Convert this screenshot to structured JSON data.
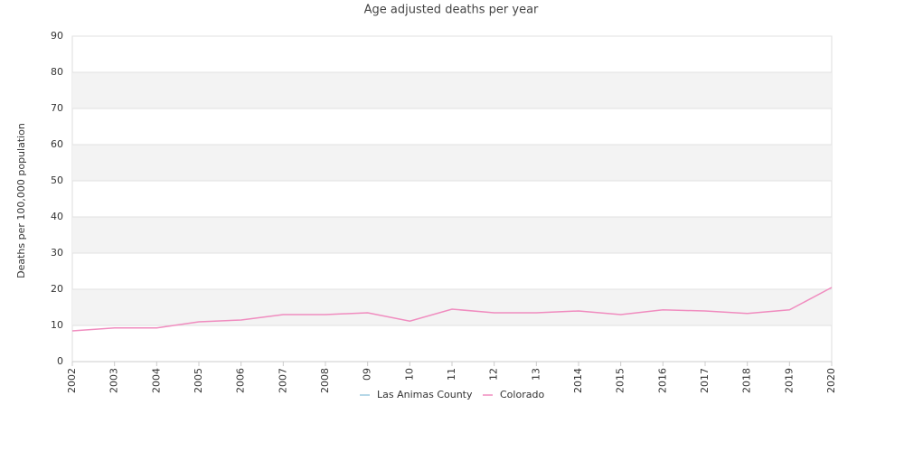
{
  "chart_data": {
    "type": "line",
    "title": "Age adjusted deaths per year",
    "y_label": "Deaths per 100,000 population",
    "categories": [
      "2002",
      "2003",
      "2004",
      "2005",
      "2006",
      "2007",
      "2008",
      "09",
      "10",
      "11",
      "12",
      "13",
      "2014",
      "2015",
      "2016",
      "2017",
      "2018",
      "2019",
      "2020"
    ],
    "series": [
      {
        "name": "Las Animas County",
        "color": "#9ecae1",
        "values": [
          null,
          null,
          null,
          null,
          null,
          null,
          null,
          null,
          null,
          null,
          null,
          null,
          null,
          null,
          null,
          null,
          null,
          null,
          null
        ]
      },
      {
        "name": "Colorado",
        "color": "#f08cbf",
        "values": [
          8.5,
          9.3,
          9.3,
          11,
          11.5,
          13,
          13,
          13.5,
          11.2,
          14.5,
          13.5,
          13.5,
          14,
          13,
          14.3,
          14,
          13.3,
          14.3,
          20.5
        ]
      }
    ],
    "ylim": [
      0,
      90
    ],
    "yticks": [
      0,
      10,
      20,
      30,
      40,
      50,
      60,
      70,
      80,
      90
    ],
    "grid": true,
    "legend": "bottom"
  }
}
